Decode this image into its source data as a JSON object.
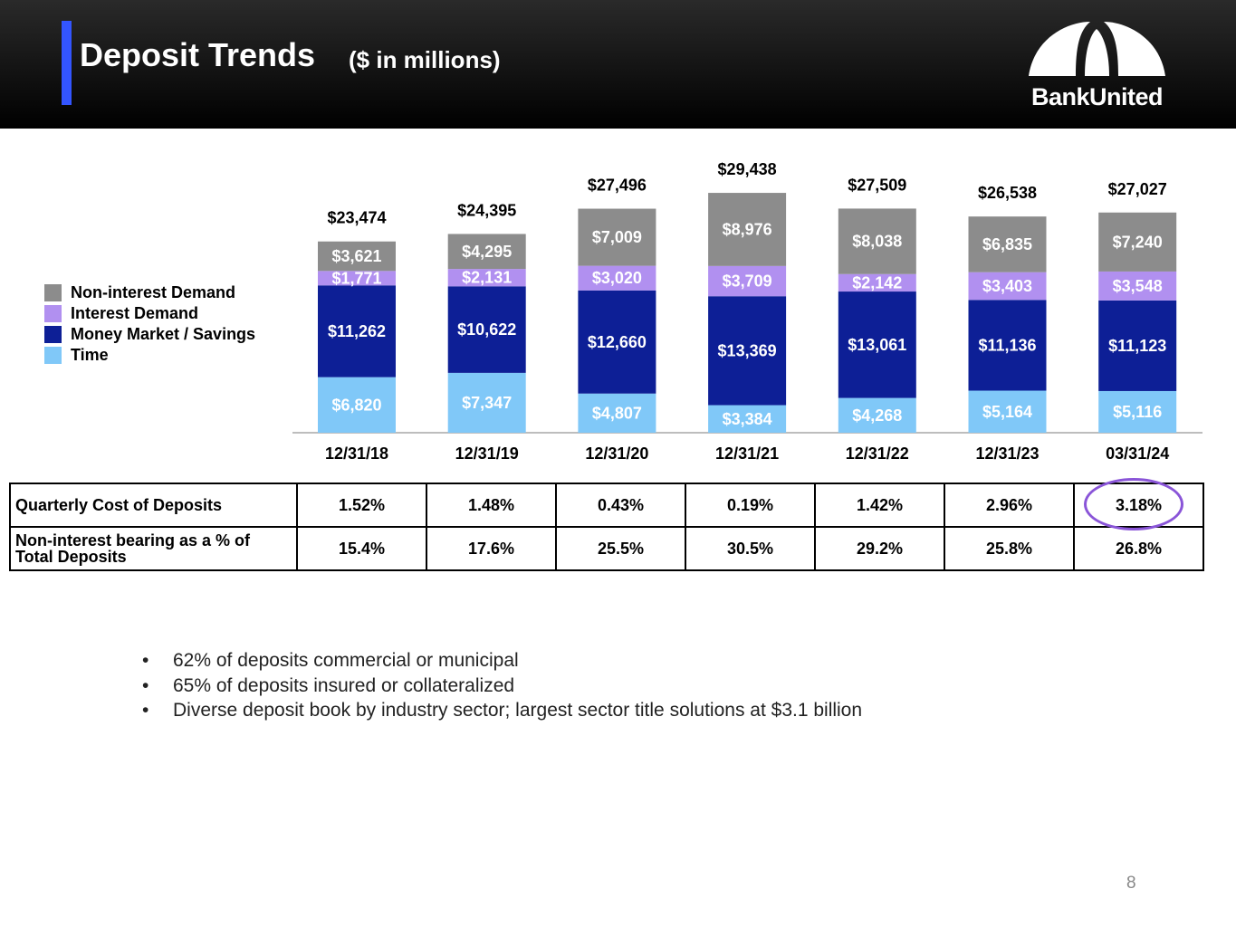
{
  "header": {
    "title": "Deposit Trends",
    "subtitle": "($ in millions)",
    "logo_text": "BankUnited"
  },
  "colors": {
    "non_interest_demand": "#8c8c8c",
    "interest_demand": "#b190f0",
    "money_market_savings": "#0d1f96",
    "time": "#80c8f8",
    "highlight": "#8a55d8",
    "accent": "#3355ff"
  },
  "legend": [
    {
      "label": "Non-interest Demand",
      "color": "#8c8c8c"
    },
    {
      "label": "Interest Demand",
      "color": "#b190f0"
    },
    {
      "label": "Money Market / Savings",
      "color": "#0d1f96"
    },
    {
      "label": "Time",
      "color": "#80c8f8"
    }
  ],
  "chart_data": {
    "type": "bar",
    "stacked": true,
    "categories": [
      "12/31/18",
      "12/31/19",
      "12/31/20",
      "12/31/21",
      "12/31/22",
      "12/31/23",
      "03/31/24"
    ],
    "series": [
      {
        "name": "Time",
        "values": [
          6820,
          7347,
          4807,
          3384,
          4268,
          5164,
          5116
        ],
        "labels": [
          "$6,820",
          "$7,347",
          "$4,807",
          "$3,384",
          "$4,268",
          "$5,164",
          "$5,116"
        ]
      },
      {
        "name": "Money Market / Savings",
        "values": [
          11262,
          10622,
          12660,
          13369,
          13061,
          11136,
          11123
        ],
        "labels": [
          "$11,262",
          "$10,622",
          "$12,660",
          "$13,369",
          "$13,061",
          "$11,136",
          "$11,123"
        ]
      },
      {
        "name": "Interest Demand",
        "values": [
          1771,
          2131,
          3020,
          3709,
          2142,
          3403,
          3548
        ],
        "labels": [
          "$1,771",
          "$2,131",
          "$3,020",
          "$3,709",
          "$2,142",
          "$3,403",
          "$3,548"
        ]
      },
      {
        "name": "Non-interest Demand",
        "values": [
          3621,
          4295,
          7009,
          8976,
          8038,
          6835,
          7240
        ],
        "labels": [
          "$3,621",
          "$4,295",
          "$7,009",
          "$8,976",
          "$8,038",
          "$6,835",
          "$7,240"
        ]
      }
    ],
    "totals": [
      23474,
      24395,
      27496,
      29438,
      27509,
      26538,
      27027
    ],
    "total_labels": [
      "$23,474",
      "$24,395",
      "$27,496",
      "$29,438",
      "$27,509",
      "$26,538",
      "$27,027"
    ],
    "legend_position": "left",
    "grid": false
  },
  "table": {
    "rows": [
      {
        "label": "Quarterly Cost of Deposits",
        "values": [
          "1.52%",
          "1.48%",
          "0.43%",
          "0.19%",
          "1.42%",
          "2.96%",
          "3.18%"
        ]
      },
      {
        "label_line1": "Non-interest bearing as a % of",
        "label_line2": "Total Deposits",
        "values": [
          "15.4%",
          "17.6%",
          "25.5%",
          "30.5%",
          "29.2%",
          "25.8%",
          "26.8%"
        ]
      }
    ]
  },
  "bullets": [
    "62% of deposits commercial or municipal",
    "65% of deposits insured or collateralized",
    "Diverse deposit book by industry sector; largest sector title solutions at $3.1 billion"
  ],
  "bullet_glyph": "•",
  "page_number": "8"
}
